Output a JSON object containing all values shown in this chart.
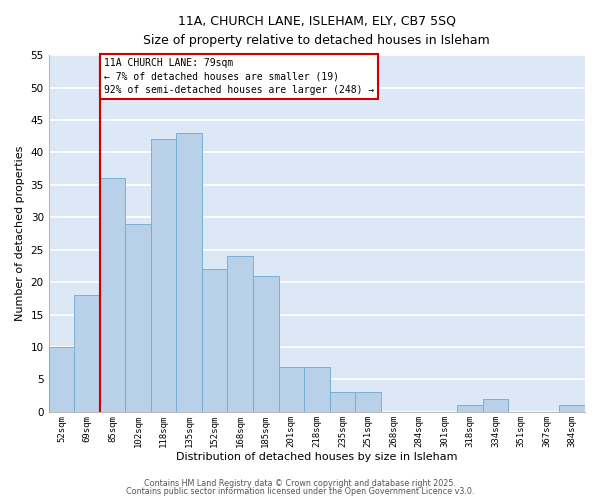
{
  "title_line1": "11A, CHURCH LANE, ISLEHAM, ELY, CB7 5SQ",
  "title_line2": "Size of property relative to detached houses in Isleham",
  "xlabel": "Distribution of detached houses by size in Isleham",
  "ylabel": "Number of detached properties",
  "bar_labels": [
    "52sqm",
    "69sqm",
    "85sqm",
    "102sqm",
    "118sqm",
    "135sqm",
    "152sqm",
    "168sqm",
    "185sqm",
    "201sqm",
    "218sqm",
    "235sqm",
    "251sqm",
    "268sqm",
    "284sqm",
    "301sqm",
    "318sqm",
    "334sqm",
    "351sqm",
    "367sqm",
    "384sqm"
  ],
  "bar_values": [
    10,
    18,
    36,
    29,
    42,
    43,
    22,
    24,
    21,
    7,
    7,
    3,
    3,
    0,
    0,
    0,
    1,
    2,
    0,
    0,
    1
  ],
  "bar_color": "#b8d0e8",
  "bar_edge_color": "#7aafd4",
  "background_color": "#dce8f5",
  "grid_color": "#ffffff",
  "ylim": [
    0,
    55
  ],
  "yticks": [
    0,
    5,
    10,
    15,
    20,
    25,
    30,
    35,
    40,
    45,
    50,
    55
  ],
  "red_line_x": 2,
  "annotation_title": "11A CHURCH LANE: 79sqm",
  "annotation_line2": "← 7% of detached houses are smaller (19)",
  "annotation_line3": "92% of semi-detached houses are larger (248) →",
  "annotation_box_color": "#ffffff",
  "annotation_border_color": "#cc0000",
  "red_line_color": "#cc0000",
  "footer_line1": "Contains HM Land Registry data © Crown copyright and database right 2025.",
  "footer_line2": "Contains public sector information licensed under the Open Government Licence v3.0."
}
